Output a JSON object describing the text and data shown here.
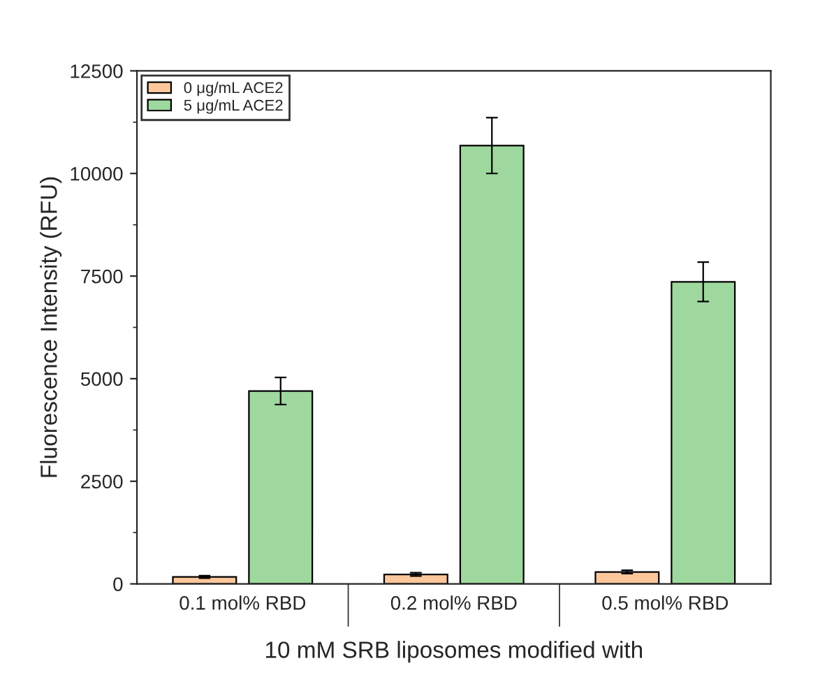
{
  "chart_data": {
    "type": "bar",
    "xlabel": "10 mM SRB liposomes modified with",
    "ylabel": "Fluorescence Intensity (RFU)",
    "categories": [
      "0.1 mol% RBD",
      "0.2 mol% RBD",
      "0.5 mol% RBD"
    ],
    "series": [
      {
        "name": "0 μg/mL ACE2",
        "color": "#fdc79b",
        "values": [
          170,
          230,
          290
        ],
        "errors": [
          30,
          40,
          40
        ]
      },
      {
        "name": "5 μg/mL ACE2",
        "color": "#9fd89f",
        "values": [
          4700,
          10680,
          7360
        ],
        "errors": [
          330,
          680,
          480
        ]
      }
    ],
    "ylim": [
      0,
      12500
    ],
    "yticks": [
      0,
      2500,
      5000,
      7500,
      10000,
      12500
    ],
    "legend": "top left",
    "grid": false
  }
}
